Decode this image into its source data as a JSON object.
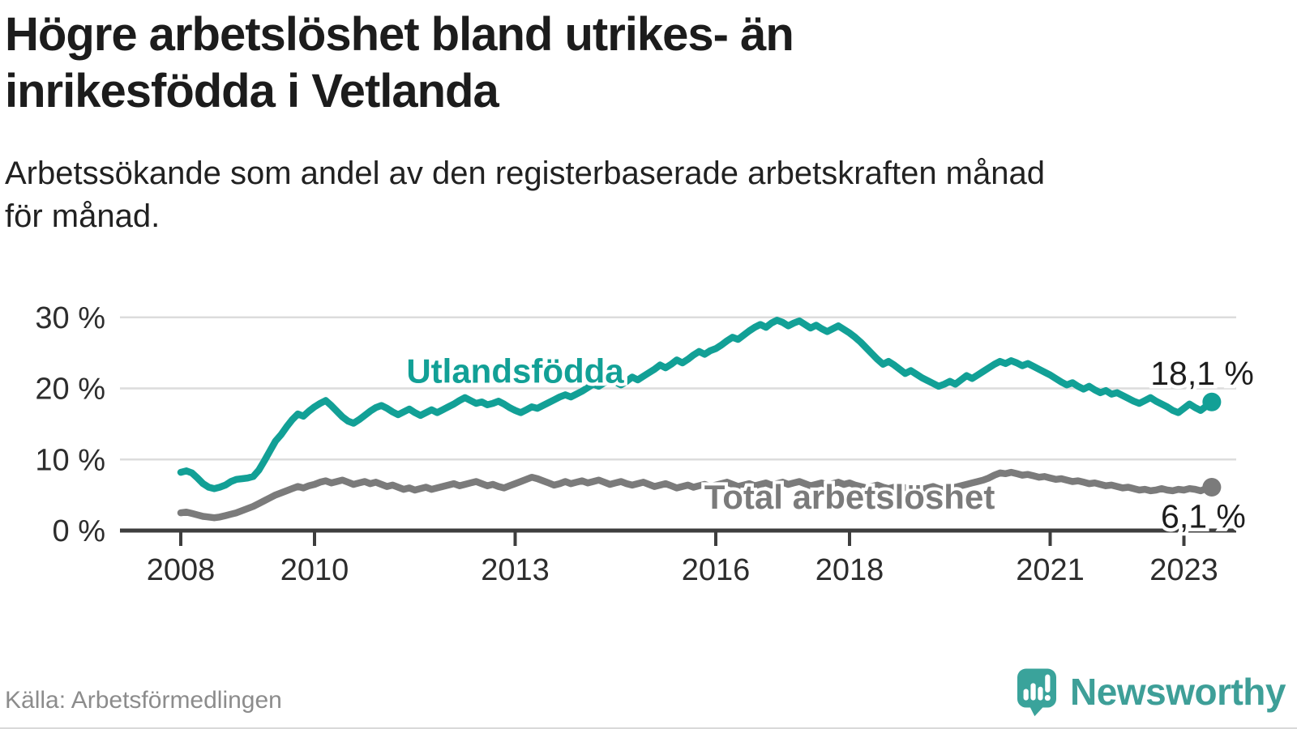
{
  "header": {
    "title_lines": [
      "Högre arbetslöshet bland utrikes- än",
      "inrikesfödda i Vetlanda"
    ],
    "subtitle_lines": [
      "Arbetssökande som andel av den registerbaserade arbetskraften månad",
      "för månad."
    ]
  },
  "footer": {
    "source": "Källa: Arbetsförmedlingen",
    "brand": "Newsworthy"
  },
  "colors": {
    "teal_line": "#12a096",
    "gray_line": "#7b7b7b",
    "gridline": "#dcdcdc",
    "axis": "#3e3e3e",
    "logo_teal": "#3aa39b"
  },
  "chart_data": {
    "type": "line",
    "title": "Högre arbetslöshet bland utrikes- än inrikesfödda i Vetlanda",
    "xlabel": "",
    "ylabel": "",
    "x_unit": "month",
    "x_start_year": 2008,
    "ylim": [
      0,
      31
    ],
    "grid": true,
    "legend_position": "inline-labels",
    "y_ticks": [
      {
        "value": 0,
        "label": "0 %"
      },
      {
        "value": 10,
        "label": "10 %"
      },
      {
        "value": 20,
        "label": "20 %"
      },
      {
        "value": 30,
        "label": "30 %"
      }
    ],
    "x_ticks": [
      {
        "year": 2008,
        "label": "2008"
      },
      {
        "year": 2010,
        "label": "2010"
      },
      {
        "year": 2013,
        "label": "2013"
      },
      {
        "year": 2016,
        "label": "2016"
      },
      {
        "year": 2018,
        "label": "2018"
      },
      {
        "year": 2021,
        "label": "2021"
      },
      {
        "year": 2023,
        "label": "2023"
      }
    ],
    "series": [
      {
        "id": "utlandsfodda",
        "name": "Utlandsfödda",
        "color": "#12a096",
        "end_value_label": "18,1 %",
        "name_anchor": {
          "year": 2013.0,
          "value": 22.4
        },
        "value_label_offset": [
          52,
          -21
        ],
        "values": [
          8.2,
          8.4,
          8.1,
          7.4,
          6.6,
          6.1,
          5.9,
          6.1,
          6.4,
          6.9,
          7.2,
          7.3,
          7.4,
          7.6,
          8.5,
          9.8,
          11.2,
          12.6,
          13.5,
          14.6,
          15.6,
          16.4,
          16.1,
          16.8,
          17.4,
          17.9,
          18.3,
          17.6,
          16.8,
          16.0,
          15.4,
          15.1,
          15.6,
          16.2,
          16.8,
          17.3,
          17.6,
          17.2,
          16.7,
          16.3,
          16.7,
          17.1,
          16.6,
          16.2,
          16.6,
          17.0,
          16.6,
          17.0,
          17.4,
          17.8,
          18.3,
          18.7,
          18.3,
          17.9,
          18.1,
          17.7,
          17.9,
          18.2,
          17.8,
          17.3,
          16.9,
          16.6,
          17.0,
          17.4,
          17.2,
          17.6,
          18.0,
          18.4,
          18.8,
          19.1,
          18.8,
          19.2,
          19.6,
          20.1,
          20.6,
          20.3,
          20.8,
          21.3,
          20.9,
          20.5,
          21.0,
          21.6,
          21.2,
          21.7,
          22.2,
          22.7,
          23.3,
          22.9,
          23.4,
          24.0,
          23.6,
          24.1,
          24.7,
          25.2,
          24.8,
          25.3,
          25.6,
          26.1,
          26.7,
          27.2,
          26.9,
          27.5,
          28.1,
          28.6,
          29.0,
          28.6,
          29.2,
          29.6,
          29.3,
          28.8,
          29.2,
          29.5,
          29.0,
          28.5,
          28.9,
          28.4,
          28.0,
          28.4,
          28.8,
          28.3,
          27.8,
          27.2,
          26.5,
          25.7,
          24.9,
          24.1,
          23.4,
          23.8,
          23.3,
          22.7,
          22.1,
          22.5,
          22.0,
          21.5,
          21.1,
          20.7,
          20.3,
          20.6,
          21.0,
          20.6,
          21.2,
          21.8,
          21.4,
          21.9,
          22.4,
          22.9,
          23.4,
          23.8,
          23.5,
          23.9,
          23.6,
          23.2,
          23.5,
          23.1,
          22.7,
          22.3,
          21.9,
          21.4,
          20.9,
          20.5,
          20.8,
          20.3,
          19.9,
          20.3,
          19.8,
          19.4,
          19.7,
          19.2,
          19.4,
          19.0,
          18.6,
          18.2,
          17.9,
          18.3,
          18.7,
          18.2,
          17.8,
          17.4,
          16.9,
          16.6,
          17.2,
          17.8,
          17.3,
          16.9,
          17.5,
          18.1
        ]
      },
      {
        "id": "total-arbetsloshet",
        "name": "Total arbetslöshet",
        "color": "#7b7b7b",
        "end_value_label": "6,1 %",
        "name_anchor": {
          "year": 2018.0,
          "value": 4.7
        },
        "value_label_offset": [
          42,
          50
        ],
        "values": [
          2.5,
          2.6,
          2.4,
          2.2,
          2.0,
          1.9,
          1.8,
          1.9,
          2.1,
          2.3,
          2.5,
          2.8,
          3.1,
          3.4,
          3.8,
          4.2,
          4.6,
          5.0,
          5.3,
          5.6,
          5.9,
          6.2,
          6.0,
          6.3,
          6.5,
          6.8,
          7.0,
          6.7,
          6.9,
          7.1,
          6.8,
          6.5,
          6.7,
          6.9,
          6.6,
          6.8,
          6.5,
          6.2,
          6.4,
          6.1,
          5.8,
          6.0,
          5.7,
          5.9,
          6.1,
          5.8,
          6.0,
          6.2,
          6.4,
          6.6,
          6.3,
          6.5,
          6.7,
          6.9,
          6.6,
          6.3,
          6.5,
          6.2,
          6.0,
          6.3,
          6.6,
          6.9,
          7.2,
          7.5,
          7.3,
          7.0,
          6.7,
          6.4,
          6.6,
          6.9,
          6.6,
          6.8,
          7.0,
          6.7,
          6.9,
          7.1,
          6.8,
          6.5,
          6.7,
          6.9,
          6.6,
          6.4,
          6.6,
          6.8,
          6.5,
          6.2,
          6.4,
          6.6,
          6.3,
          6.0,
          6.2,
          6.4,
          6.1,
          6.3,
          6.5,
          6.2,
          6.4,
          6.6,
          6.8,
          6.5,
          6.2,
          6.4,
          6.6,
          6.3,
          6.5,
          6.7,
          6.4,
          6.6,
          6.8,
          6.5,
          6.7,
          6.9,
          6.6,
          6.3,
          6.5,
          6.7,
          6.4,
          6.6,
          6.8,
          6.5,
          6.7,
          6.4,
          6.2,
          6.0,
          6.2,
          6.4,
          6.1,
          5.9,
          6.1,
          6.3,
          6.0,
          6.2,
          6.0,
          5.8,
          6.0,
          6.2,
          5.9,
          5.7,
          5.9,
          6.1,
          6.3,
          6.5,
          6.7,
          6.9,
          7.1,
          7.4,
          7.8,
          8.1,
          8.0,
          8.2,
          8.0,
          7.8,
          7.9,
          7.7,
          7.5,
          7.6,
          7.4,
          7.2,
          7.3,
          7.1,
          6.9,
          7.0,
          6.8,
          6.6,
          6.7,
          6.5,
          6.3,
          6.4,
          6.2,
          6.0,
          6.1,
          5.9,
          5.7,
          5.8,
          5.6,
          5.7,
          5.9,
          5.7,
          5.6,
          5.8,
          5.7,
          5.9,
          5.8,
          5.6,
          5.9,
          6.1
        ]
      }
    ]
  }
}
